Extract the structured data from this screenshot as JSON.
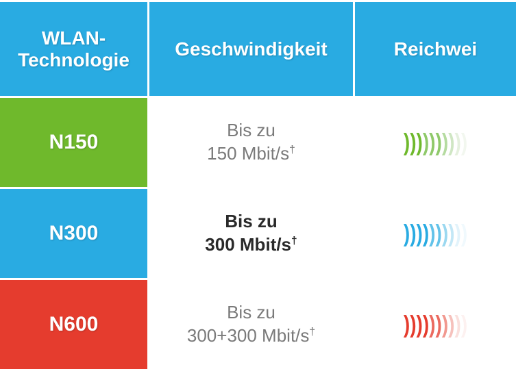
{
  "header": {
    "tech": "WLAN-Technologie",
    "speed": "Geschwindigkeit",
    "range": "Reichwei",
    "bg_color": "#29abe2"
  },
  "rows": [
    {
      "tech_label": "N150",
      "tech_bg": "#6fb92c",
      "speed_prefix": "Bis zu",
      "speed_value": "150 Mbit/s",
      "speed_suffix": "†",
      "highlight": false,
      "range_icon": {
        "arcs": 10,
        "colors": [
          "#6fb92c",
          "#6fb92c",
          "#6fb92c",
          "#8fc96a",
          "#8fc96a",
          "#8fc96a",
          "#b5dba0",
          "#cfe6c3",
          "#e5f0de",
          "#f2f7ef"
        ]
      }
    },
    {
      "tech_label": "N300",
      "tech_bg": "#29abe2",
      "speed_prefix": "Bis zu",
      "speed_value": "300 Mbit/s",
      "speed_suffix": "†",
      "highlight": true,
      "range_icon": {
        "arcs": 10,
        "colors": [
          "#29abe2",
          "#29abe2",
          "#29abe2",
          "#29abe2",
          "#62c2e9",
          "#62c2e9",
          "#9bd8f0",
          "#c3e7f6",
          "#e2f3fb",
          "#f0f9fd"
        ]
      }
    },
    {
      "tech_label": "N600",
      "tech_bg": "#e53c2e",
      "speed_prefix": "Bis zu",
      "speed_value": "300+300 Mbit/s",
      "speed_suffix": "†",
      "highlight": false,
      "range_icon": {
        "arcs": 10,
        "colors": [
          "#e53c2e",
          "#e53c2e",
          "#e53c2e",
          "#e53c2e",
          "#eb6a5f",
          "#eb6a5f",
          "#f1988f",
          "#f6c1bc",
          "#fae0dd",
          "#fdf1f0"
        ]
      }
    }
  ]
}
